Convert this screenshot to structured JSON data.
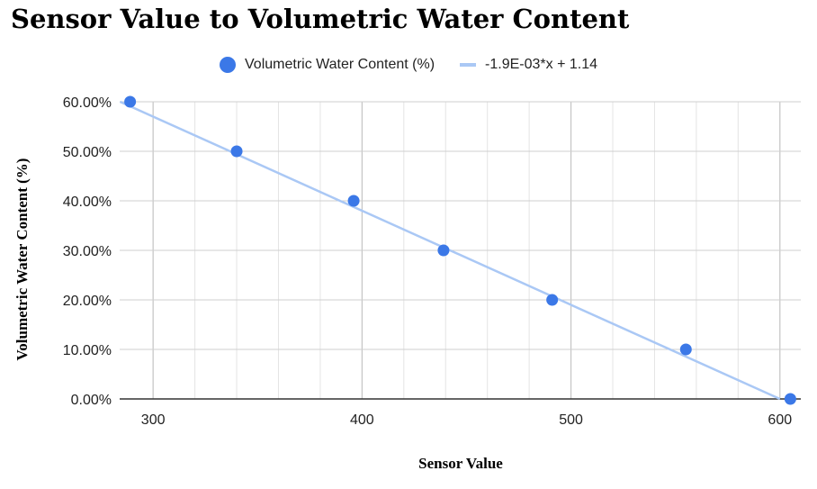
{
  "chart_data": {
    "type": "scatter",
    "title": "Sensor Value to Volumetric Water Content",
    "xlabel": "Sensor Value",
    "ylabel": "Volumetric Water Content (%)",
    "xlim": [
      284,
      610
    ],
    "ylim": [
      0,
      0.6
    ],
    "x_ticks": [
      300,
      400,
      500,
      600
    ],
    "x_tick_labels": [
      "300",
      "400",
      "500",
      "600"
    ],
    "y_ticks": [
      0,
      0.1,
      0.2,
      0.3,
      0.4,
      0.5,
      0.6
    ],
    "y_tick_labels": [
      "0.00%",
      "10.00%",
      "20.00%",
      "30.00%",
      "40.00%",
      "50.00%",
      "60.00%"
    ],
    "grid": true,
    "legend_position": "top",
    "series": [
      {
        "name": "Volumetric Water Content (%)",
        "kind": "scatter",
        "color": "#3b78e7",
        "points": [
          {
            "x": 289,
            "y": 0.6
          },
          {
            "x": 340,
            "y": 0.5
          },
          {
            "x": 396,
            "y": 0.4
          },
          {
            "x": 439,
            "y": 0.3
          },
          {
            "x": 491,
            "y": 0.2
          },
          {
            "x": 555,
            "y": 0.1
          },
          {
            "x": 605,
            "y": 0.0
          }
        ]
      },
      {
        "name": "-1.9E-03*x + 1.14",
        "kind": "trendline",
        "color": "#aac8f5",
        "slope": -0.0019,
        "intercept": 1.14
      }
    ]
  }
}
